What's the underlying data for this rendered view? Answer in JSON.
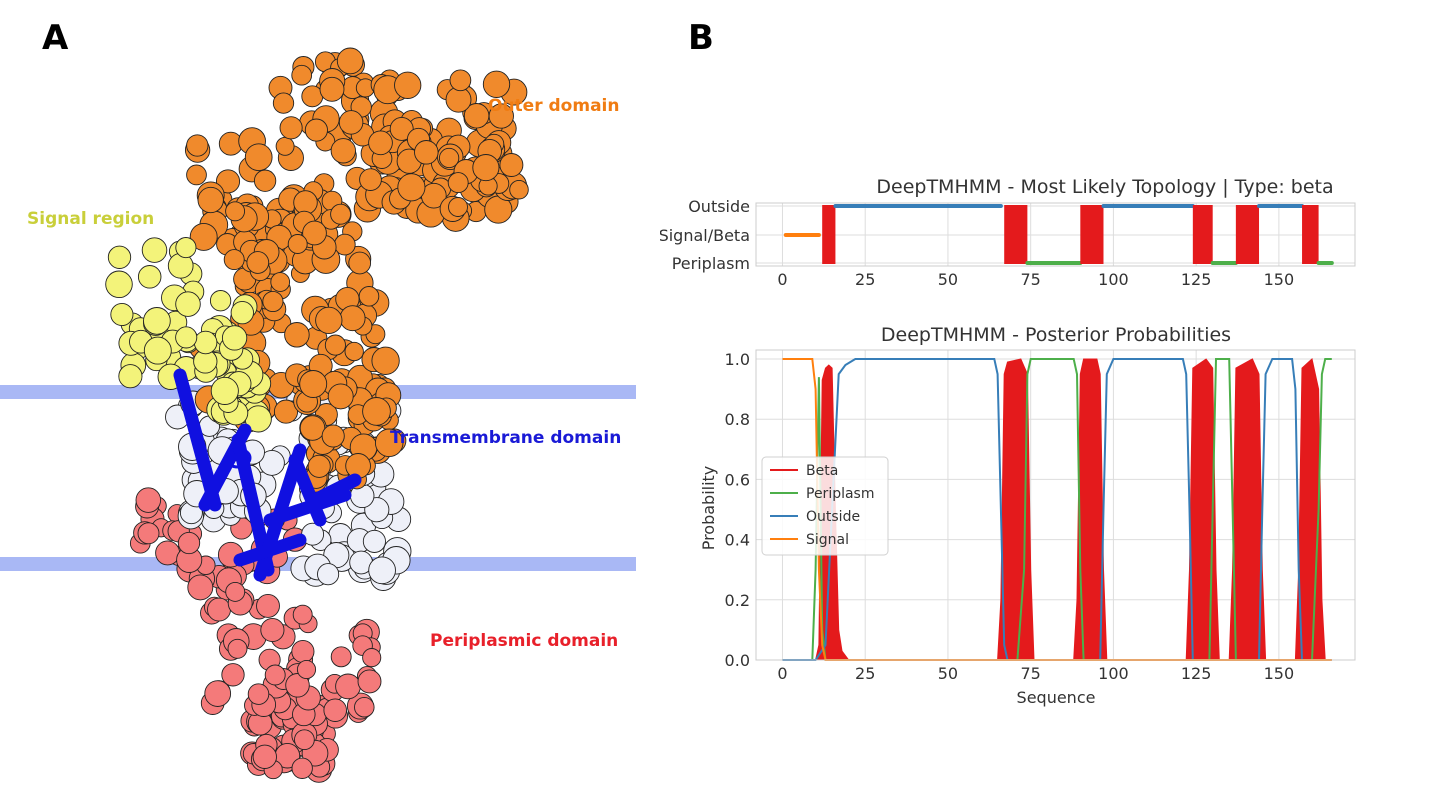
{
  "panels": {
    "a_label": "A",
    "b_label": "B"
  },
  "structure": {
    "labels": {
      "outer": "Outer domain",
      "signal": "Signal region",
      "transmembrane": "Transmembrane domain",
      "periplasmic": "Periplasmic domain"
    },
    "colors": {
      "outer": "#f08a2c",
      "signal": "#f3f37a",
      "transmembrane": "#1010e0",
      "periplasmic": "#f47a7a",
      "membrane": "#a9b8f5",
      "signal_label": "#c9cf3a",
      "outer_label": "#f07c12",
      "tm_label": "#1a1ad6",
      "peri_label": "#e8202a"
    }
  },
  "chart_data": [
    {
      "type": "line",
      "title": "DeepTMHMM - Most Likely Topology | Type: beta",
      "xlabel": "",
      "ylabel": "",
      "xlim": [
        -8,
        173
      ],
      "x_ticks": [
        0,
        25,
        50,
        75,
        100,
        125,
        150
      ],
      "y_categories": [
        "Outside",
        "Signal/Beta",
        "Periplasm"
      ],
      "grid": true,
      "segments": [
        {
          "state": "Signal",
          "category": "Signal/Beta",
          "start": 1,
          "end": 11,
          "color": "#ff7f0e"
        },
        {
          "state": "Beta",
          "category": "Signal/Beta",
          "start": 12,
          "end": 16,
          "color": "#e41a1c"
        },
        {
          "state": "Outside",
          "category": "Outside",
          "start": 16,
          "end": 66,
          "color": "#377eb8"
        },
        {
          "state": "Beta",
          "category": "Signal/Beta",
          "start": 67,
          "end": 74,
          "color": "#e41a1c"
        },
        {
          "state": "Periplasm",
          "category": "Periplasm",
          "start": 74,
          "end": 90,
          "color": "#4daf4a"
        },
        {
          "state": "Beta",
          "category": "Signal/Beta",
          "start": 90,
          "end": 97,
          "color": "#e41a1c"
        },
        {
          "state": "Outside",
          "category": "Outside",
          "start": 97,
          "end": 124,
          "color": "#377eb8"
        },
        {
          "state": "Beta",
          "category": "Signal/Beta",
          "start": 124,
          "end": 130,
          "color": "#e41a1c"
        },
        {
          "state": "Periplasm",
          "category": "Periplasm",
          "start": 130,
          "end": 137,
          "color": "#4daf4a"
        },
        {
          "state": "Beta",
          "category": "Signal/Beta",
          "start": 137,
          "end": 144,
          "color": "#e41a1c"
        },
        {
          "state": "Outside",
          "category": "Outside",
          "start": 144,
          "end": 157,
          "color": "#377eb8"
        },
        {
          "state": "Beta",
          "category": "Signal/Beta",
          "start": 157,
          "end": 162,
          "color": "#e41a1c"
        },
        {
          "state": "Periplasm",
          "category": "Periplasm",
          "start": 162,
          "end": 166,
          "color": "#4daf4a"
        }
      ]
    },
    {
      "type": "area",
      "title": "DeepTMHMM - Posterior Probabilities",
      "xlabel": "Sequence",
      "ylabel": "Probability",
      "xlim": [
        -8,
        173
      ],
      "ylim": [
        0,
        1.03
      ],
      "x_ticks": [
        0,
        25,
        50,
        75,
        100,
        125,
        150
      ],
      "y_ticks": [
        "0.0",
        "0.2",
        "0.4",
        "0.6",
        "0.8",
        "1.0"
      ],
      "grid": true,
      "legend": "middle-left",
      "series": [
        {
          "name": "Beta",
          "color": "#e41a1c",
          "filled": true,
          "points": [
            [
              0,
              0
            ],
            [
              10,
              0
            ],
            [
              11,
              0.05
            ],
            [
              12,
              0.93
            ],
            [
              13,
              0.97
            ],
            [
              14,
              0.98
            ],
            [
              15,
              0.97
            ],
            [
              16,
              0.5
            ],
            [
              17,
              0.1
            ],
            [
              18,
              0.03
            ],
            [
              20,
              0
            ],
            [
              65,
              0
            ],
            [
              66,
              0.2
            ],
            [
              67,
              0.95
            ],
            [
              68,
              0.99
            ],
            [
              72,
              1.0
            ],
            [
              74,
              0.95
            ],
            [
              75,
              0.3
            ],
            [
              76,
              0
            ],
            [
              88,
              0
            ],
            [
              89,
              0.2
            ],
            [
              90,
              0.95
            ],
            [
              91,
              1.0
            ],
            [
              95,
              1.0
            ],
            [
              96,
              0.95
            ],
            [
              97,
              0.3
            ],
            [
              98,
              0
            ],
            [
              122,
              0
            ],
            [
              123,
              0.3
            ],
            [
              124,
              0.97
            ],
            [
              128,
              1.0
            ],
            [
              130,
              0.97
            ],
            [
              131,
              0.3
            ],
            [
              132,
              0
            ],
            [
              135,
              0
            ],
            [
              136,
              0.3
            ],
            [
              137,
              0.97
            ],
            [
              142,
              1.0
            ],
            [
              144,
              0.95
            ],
            [
              145,
              0.3
            ],
            [
              146,
              0
            ],
            [
              155,
              0
            ],
            [
              156,
              0.3
            ],
            [
              157,
              0.97
            ],
            [
              160,
              1.0
            ],
            [
              162,
              0.9
            ],
            [
              163,
              0.2
            ],
            [
              164,
              0
            ],
            [
              166,
              0
            ]
          ]
        },
        {
          "name": "Periplasm",
          "color": "#4daf4a",
          "filled": false,
          "points": [
            [
              0,
              0
            ],
            [
              9,
              0
            ],
            [
              10,
              0.3
            ],
            [
              11,
              0.94
            ],
            [
              12,
              0.1
            ],
            [
              13,
              0
            ],
            [
              71,
              0
            ],
            [
              73,
              0.3
            ],
            [
              74,
              0.95
            ],
            [
              75,
              1.0
            ],
            [
              88,
              1.0
            ],
            [
              89,
              0.95
            ],
            [
              90,
              0.3
            ],
            [
              91,
              0
            ],
            [
              129,
              0
            ],
            [
              130,
              0.5
            ],
            [
              131,
              1.0
            ],
            [
              135,
              1.0
            ],
            [
              136,
              0.5
            ],
            [
              137,
              0
            ],
            [
              160,
              0
            ],
            [
              162,
              0.5
            ],
            [
              163,
              0.95
            ],
            [
              164,
              1.0
            ],
            [
              166,
              1.0
            ]
          ]
        },
        {
          "name": "Outside",
          "color": "#377eb8",
          "filled": false,
          "points": [
            [
              0,
              0
            ],
            [
              10,
              0
            ],
            [
              13,
              0.05
            ],
            [
              15,
              0.5
            ],
            [
              17,
              0.95
            ],
            [
              19,
              0.98
            ],
            [
              22,
              1.0
            ],
            [
              64,
              1.0
            ],
            [
              65,
              0.95
            ],
            [
              66,
              0.5
            ],
            [
              67,
              0.05
            ],
            [
              68,
              0
            ],
            [
              96,
              0
            ],
            [
              97,
              0.5
            ],
            [
              98,
              0.95
            ],
            [
              100,
              1.0
            ],
            [
              121,
              1.0
            ],
            [
              122,
              0.95
            ],
            [
              123,
              0.5
            ],
            [
              124,
              0
            ],
            [
              144,
              0
            ],
            [
              145,
              0.5
            ],
            [
              146,
              0.95
            ],
            [
              148,
              1.0
            ],
            [
              154,
              1.0
            ],
            [
              155,
              0.9
            ],
            [
              156,
              0.3
            ],
            [
              157,
              0
            ],
            [
              166,
              0
            ]
          ]
        },
        {
          "name": "Signal",
          "color": "#ff7f0e",
          "filled": false,
          "points": [
            [
              0,
              1.0
            ],
            [
              9,
              1.0
            ],
            [
              10,
              0.9
            ],
            [
              11,
              0.3
            ],
            [
              12,
              0.05
            ],
            [
              13,
              0
            ],
            [
              166,
              0
            ]
          ]
        }
      ]
    }
  ]
}
